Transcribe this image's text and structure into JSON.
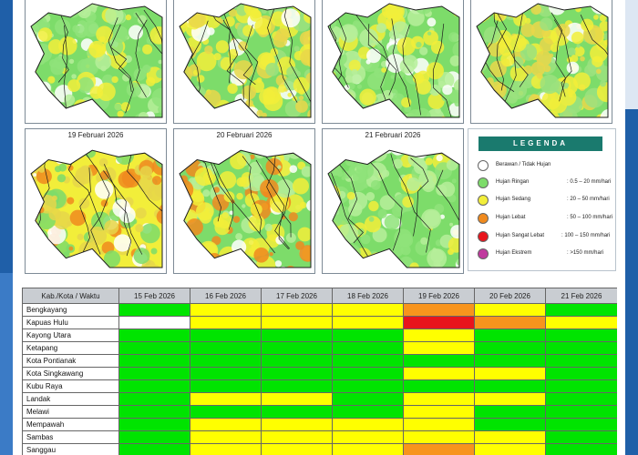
{
  "colors": {
    "berawan": "#ffffff",
    "ringan": "#7ddc6a",
    "sedang": "#f2ee3a",
    "lebat": "#f08a1e",
    "sangat_lebat": "#e8141c",
    "ekstrem": "#c0399e",
    "legend_header": "#1a7a6e"
  },
  "maps": [
    {
      "date": "",
      "tone": "green-light"
    },
    {
      "date": "",
      "tone": "green-yellow"
    },
    {
      "date": "",
      "tone": "green-light"
    },
    {
      "date": "",
      "tone": "green-yellow"
    },
    {
      "date": "19 Februari 2026",
      "tone": "yellow"
    },
    {
      "date": "20 Februari 2026",
      "tone": "yellow-green"
    },
    {
      "date": "21 Februari 2026",
      "tone": "green"
    }
  ],
  "legend": {
    "title": "LEGENDA",
    "items": [
      {
        "label": "Berawan / Tidak Hujan",
        "range": "",
        "color": "#ffffff"
      },
      {
        "label": "Hujan Ringan",
        "range": ": 0.5 – 20 mm/hari",
        "color": "#7ddc6a"
      },
      {
        "label": "Hujan Sedang",
        "range": ": 20 – 50 mm/hari",
        "color": "#f2ee3a"
      },
      {
        "label": "Hujan Lebat",
        "range": ": 50 – 100 mm/hari",
        "color": "#f08a1e"
      },
      {
        "label": "Hujan Sangat Lebat",
        "range": ": 100 – 150 mm/hari",
        "color": "#e8141c"
      },
      {
        "label": "Hujan Ekstrem",
        "range": ": >150 mm/hari",
        "color": "#c0399e"
      }
    ]
  },
  "table": {
    "header": [
      "Kab./Kota / Waktu",
      "15 Feb 2026",
      "16 Feb 2026",
      "17 Feb 2026",
      "18 Feb 2026",
      "19 Feb 2026",
      "20 Feb 2026",
      "21 Feb 2026"
    ],
    "rows": [
      {
        "name": "Bengkayang",
        "cells": [
          "g",
          "y",
          "y",
          "y",
          "o",
          "y",
          "g"
        ]
      },
      {
        "name": "Kapuas Hulu",
        "cells": [
          "w",
          "y",
          "y",
          "y",
          "r",
          "o",
          "y"
        ]
      },
      {
        "name": "Kayong Utara",
        "cells": [
          "g",
          "g",
          "g",
          "g",
          "y",
          "g",
          "g"
        ]
      },
      {
        "name": "Ketapang",
        "cells": [
          "g",
          "g",
          "g",
          "g",
          "y",
          "g",
          "g"
        ]
      },
      {
        "name": "Kota Pontianak",
        "cells": [
          "g",
          "g",
          "g",
          "g",
          "g",
          "g",
          "g"
        ]
      },
      {
        "name": "Kota Singkawang",
        "cells": [
          "g",
          "g",
          "g",
          "g",
          "y",
          "y",
          "g"
        ]
      },
      {
        "name": "Kubu Raya",
        "cells": [
          "g",
          "g",
          "g",
          "g",
          "g",
          "g",
          "g"
        ]
      },
      {
        "name": "Landak",
        "cells": [
          "g",
          "y",
          "y",
          "g",
          "y",
          "y",
          "g"
        ]
      },
      {
        "name": "Melawi",
        "cells": [
          "g",
          "g",
          "g",
          "g",
          "y",
          "g",
          "g"
        ]
      },
      {
        "name": "Mempawah",
        "cells": [
          "g",
          "y",
          "y",
          "y",
          "y",
          "g",
          "g"
        ]
      },
      {
        "name": "Sambas",
        "cells": [
          "g",
          "y",
          "y",
          "y",
          "y",
          "y",
          "g"
        ]
      },
      {
        "name": "Sanggau",
        "cells": [
          "g",
          "y",
          "y",
          "y",
          "o",
          "y",
          "g"
        ]
      },
      {
        "name": "",
        "cells": [
          "g",
          "y",
          "y",
          "y",
          "y",
          "y",
          "g"
        ]
      }
    ]
  }
}
